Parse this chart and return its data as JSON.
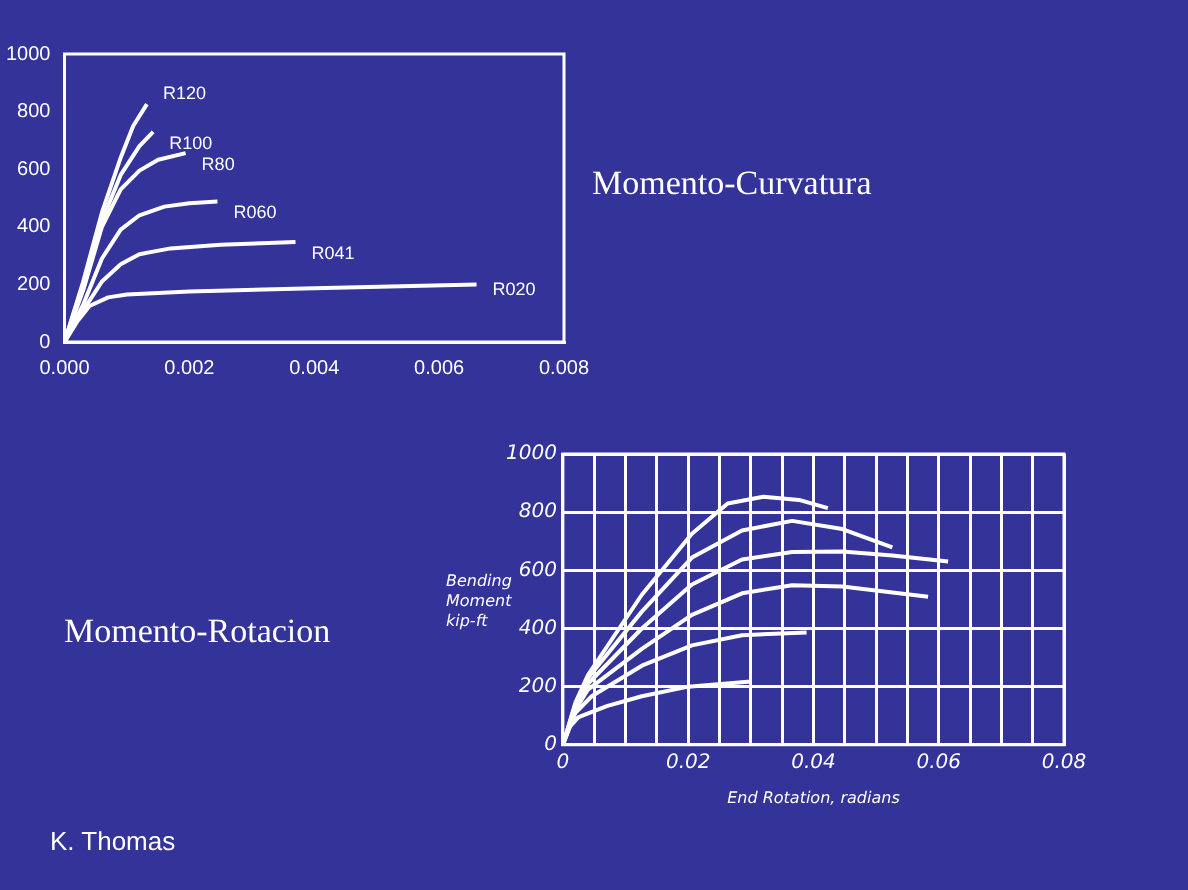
{
  "chart_data": [
    {
      "type": "line",
      "title": "Momento-Curvatura",
      "xlim": [
        0,
        0.008
      ],
      "ylim": [
        0,
        1000
      ],
      "xticks": [
        {
          "value": 0,
          "label": "0.000"
        },
        {
          "value": 0.002,
          "label": "0.002"
        },
        {
          "value": 0.004,
          "label": "0.004"
        },
        {
          "value": 0.006,
          "label": "0.006"
        },
        {
          "value": 0.008,
          "label": "0.008"
        }
      ],
      "yticks": [
        0,
        200,
        400,
        600,
        800,
        1000
      ],
      "marker": "none",
      "series": [
        {
          "name": "R020",
          "color": "#ffffff",
          "x": [
            0,
            0.0002,
            0.0004,
            0.0007,
            0.001,
            0.002,
            0.004,
            0.0066
          ],
          "values": [
            0,
            70,
            125,
            155,
            165,
            175,
            187,
            200
          ]
        },
        {
          "name": "R041",
          "color": "#ffffff",
          "x": [
            0,
            0.0003,
            0.0006,
            0.0009,
            0.0012,
            0.0017,
            0.0025,
            0.0037
          ],
          "values": [
            0,
            110,
            210,
            270,
            305,
            325,
            338,
            347
          ]
        },
        {
          "name": "R060",
          "color": "#ffffff",
          "x": [
            0,
            0.0003,
            0.0006,
            0.0009,
            0.0012,
            0.0016,
            0.002,
            0.00245
          ],
          "values": [
            0,
            130,
            290,
            390,
            440,
            470,
            482,
            488
          ]
        },
        {
          "name": "R80",
          "color": "#ffffff",
          "x": [
            0,
            0.0003,
            0.0006,
            0.0009,
            0.0012,
            0.0015,
            0.00194
          ],
          "values": [
            0,
            180,
            400,
            530,
            595,
            633,
            656
          ]
        },
        {
          "name": "R100",
          "color": "#ffffff",
          "x": [
            0,
            0.0003,
            0.0006,
            0.0009,
            0.0012,
            0.00142
          ],
          "values": [
            0,
            200,
            420,
            580,
            680,
            730
          ]
        },
        {
          "name": "R120",
          "color": "#ffffff",
          "x": [
            0,
            0.0003,
            0.0006,
            0.0009,
            0.0011,
            0.00132
          ],
          "values": [
            0,
            210,
            450,
            640,
            750,
            826
          ]
        }
      ]
    },
    {
      "type": "line",
      "title": "Momento-Rotacion",
      "xlabel": "End Rotation, radians",
      "ylabel": "Bending Moment kip-ft",
      "annotations": [
        "K. Thomas"
      ],
      "xlim": [
        0,
        0.08
      ],
      "ylim": [
        0,
        1000
      ],
      "xticks": [
        0,
        {
          "value": 0.005,
          "label": null
        },
        {
          "value": 0.01,
          "label": null
        },
        {
          "value": 0.015,
          "label": null
        },
        0.02,
        {
          "value": 0.025,
          "label": null
        },
        {
          "value": 0.03,
          "label": null
        },
        {
          "value": 0.035,
          "label": null
        },
        0.04,
        {
          "value": 0.045,
          "label": null
        },
        {
          "value": 0.05,
          "label": null
        },
        {
          "value": 0.055,
          "label": null
        },
        0.06,
        {
          "value": 0.065,
          "label": null
        },
        {
          "value": 0.07,
          "label": null
        },
        {
          "value": 0.075,
          "label": null
        },
        0.08
      ],
      "yticks": [
        0,
        200,
        400,
        600,
        800,
        1000
      ],
      "grid": true,
      "marker": "none",
      "series": [
        {
          "color": "#ffffff",
          "x": [
            0,
            0.001,
            0.0025,
            0.007,
            0.0126,
            0.02,
            0.03
          ],
          "values": [
            0,
            60,
            95,
            133,
            167,
            200,
            218
          ]
        },
        {
          "color": "#ffffff",
          "x": [
            0,
            0.002,
            0.0046,
            0.0126,
            0.0206,
            0.0286,
            0.0389
          ],
          "values": [
            0,
            110,
            167,
            272,
            342,
            377,
            386
          ]
        },
        {
          "color": "#ffffff",
          "x": [
            0,
            0.002,
            0.004,
            0.0126,
            0.0206,
            0.0286,
            0.0366,
            0.0446,
            0.0583
          ],
          "values": [
            0,
            120,
            190,
            330,
            447,
            521,
            549,
            544,
            509
          ]
        },
        {
          "color": "#ffffff",
          "x": [
            0,
            0.002,
            0.004,
            0.0126,
            0.0206,
            0.0286,
            0.0366,
            0.0446,
            0.0526,
            0.0615
          ],
          "values": [
            0,
            130,
            210,
            400,
            551,
            637,
            663,
            665,
            651,
            630
          ]
        },
        {
          "color": "#ffffff",
          "x": [
            0,
            0.002,
            0.004,
            0.0126,
            0.0206,
            0.0286,
            0.0366,
            0.0446,
            0.0526
          ],
          "values": [
            0,
            140,
            230,
            458,
            644,
            737,
            770,
            742,
            679
          ]
        },
        {
          "color": "#ffffff",
          "x": [
            0,
            0.002,
            0.004,
            0.0126,
            0.0206,
            0.0263,
            0.032,
            0.0377,
            0.0423
          ],
          "values": [
            0,
            145,
            240,
            516,
            726,
            830,
            853,
            842,
            814
          ]
        }
      ]
    }
  ]
}
